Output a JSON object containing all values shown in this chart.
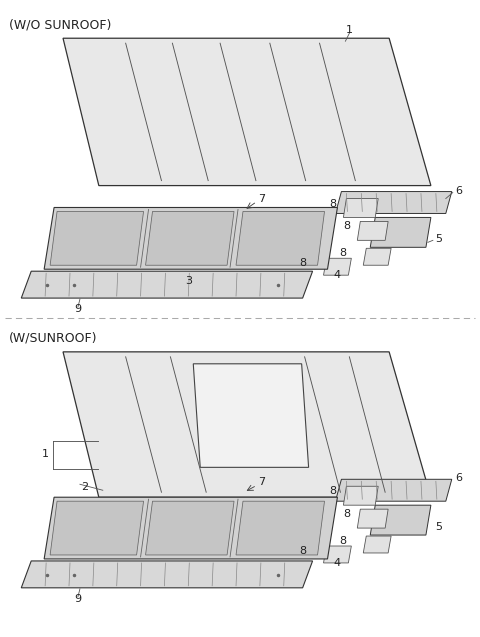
{
  "title_top": "(W/O SUNROOF)",
  "title_bottom": "(W/SUNROOF)",
  "bg_color": "#ffffff",
  "text_color": "#222222",
  "font_size_label": 8,
  "font_size_title": 9
}
